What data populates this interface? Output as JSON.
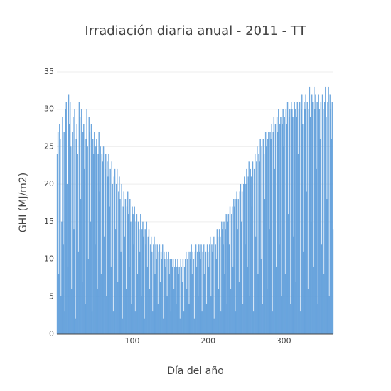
{
  "chart_data": {
    "type": "bar",
    "title": "Irradiación diaria anual - 2011 - TT",
    "xlabel": "Día del año",
    "ylabel": "GHI (MJ/m2)",
    "color": "#5b9bd9",
    "grid": true,
    "xlim": [
      0.5,
      365.5
    ],
    "xticks": [
      100,
      200,
      300
    ],
    "ylim": [
      0,
      35
    ],
    "yticks": [
      0,
      5,
      10,
      15,
      20,
      25,
      30,
      35
    ],
    "x": [
      1,
      2,
      3,
      4,
      5,
      6,
      7,
      8,
      9,
      10,
      11,
      12,
      13,
      14,
      15,
      16,
      17,
      18,
      19,
      20,
      21,
      22,
      23,
      24,
      25,
      26,
      27,
      28,
      29,
      30,
      31,
      32,
      33,
      34,
      35,
      36,
      37,
      38,
      39,
      40,
      41,
      42,
      43,
      44,
      45,
      46,
      47,
      48,
      49,
      50,
      51,
      52,
      53,
      54,
      55,
      56,
      57,
      58,
      59,
      60,
      61,
      62,
      63,
      64,
      65,
      66,
      67,
      68,
      69,
      70,
      71,
      72,
      73,
      74,
      75,
      76,
      77,
      78,
      79,
      80,
      81,
      82,
      83,
      84,
      85,
      86,
      87,
      88,
      89,
      90,
      91,
      92,
      93,
      94,
      95,
      96,
      97,
      98,
      99,
      100,
      101,
      102,
      103,
      104,
      105,
      106,
      107,
      108,
      109,
      110,
      111,
      112,
      113,
      114,
      115,
      116,
      117,
      118,
      119,
      120,
      121,
      122,
      123,
      124,
      125,
      126,
      127,
      128,
      129,
      130,
      131,
      132,
      133,
      134,
      135,
      136,
      137,
      138,
      139,
      140,
      141,
      142,
      143,
      144,
      145,
      146,
      147,
      148,
      149,
      150,
      151,
      152,
      153,
      154,
      155,
      156,
      157,
      158,
      159,
      160,
      161,
      162,
      163,
      164,
      165,
      166,
      167,
      168,
      169,
      170,
      171,
      172,
      173,
      174,
      175,
      176,
      177,
      178,
      179,
      180,
      181,
      182,
      183,
      184,
      185,
      186,
      187,
      188,
      189,
      190,
      191,
      192,
      193,
      194,
      195,
      196,
      197,
      198,
      199,
      200,
      201,
      202,
      203,
      204,
      205,
      206,
      207,
      208,
      209,
      210,
      211,
      212,
      213,
      214,
      215,
      216,
      217,
      218,
      219,
      220,
      221,
      222,
      223,
      224,
      225,
      226,
      227,
      228,
      229,
      230,
      231,
      232,
      233,
      234,
      235,
      236,
      237,
      238,
      239,
      240,
      241,
      242,
      243,
      244,
      245,
      246,
      247,
      248,
      249,
      250,
      251,
      252,
      253,
      254,
      255,
      256,
      257,
      258,
      259,
      260,
      261,
      262,
      263,
      264,
      265,
      266,
      267,
      268,
      269,
      270,
      271,
      272,
      273,
      274,
      275,
      276,
      277,
      278,
      279,
      280,
      281,
      282,
      283,
      284,
      285,
      286,
      287,
      288,
      289,
      290,
      291,
      292,
      293,
      294,
      295,
      296,
      297,
      298,
      299,
      300,
      301,
      302,
      303,
      304,
      305,
      306,
      307,
      308,
      309,
      310,
      311,
      312,
      313,
      314,
      315,
      316,
      317,
      318,
      319,
      320,
      321,
      322,
      323,
      324,
      325,
      326,
      327,
      328,
      329,
      330,
      331,
      332,
      333,
      334,
      335,
      336,
      337,
      338,
      339,
      340,
      341,
      342,
      343,
      344,
      345,
      346,
      347,
      348,
      349,
      350,
      351,
      352,
      353,
      354,
      355,
      356,
      357,
      358,
      359,
      360,
      361,
      362,
      363,
      364,
      365
    ],
    "values": [
      24,
      27,
      8,
      28,
      26,
      5,
      15,
      29,
      12,
      27,
      3,
      30,
      31,
      20,
      9,
      32,
      28,
      31,
      25,
      6,
      27,
      29,
      14,
      30,
      2,
      26,
      28,
      24,
      11,
      31,
      29,
      18,
      30,
      7,
      27,
      28,
      22,
      4,
      26,
      30,
      25,
      10,
      29,
      27,
      15,
      28,
      3,
      26,
      24,
      27,
      12,
      25,
      26,
      6,
      24,
      27,
      19,
      25,
      8,
      24,
      23,
      25,
      13,
      22,
      24,
      5,
      23,
      21,
      24,
      17,
      22,
      9,
      23,
      20,
      3,
      21,
      22,
      14,
      20,
      22,
      7,
      19,
      21,
      18,
      11,
      20,
      2,
      17,
      19,
      13,
      18,
      6,
      17,
      19,
      16,
      9,
      18,
      15,
      4,
      17,
      16,
      12,
      17,
      3,
      15,
      16,
      8,
      15,
      14,
      11,
      16,
      5,
      14,
      15,
      13,
      2,
      14,
      12,
      15,
      9,
      13,
      14,
      6,
      12,
      13,
      11,
      3,
      12,
      13,
      8,
      12,
      10,
      12,
      4,
      11,
      12,
      7,
      11,
      10,
      12,
      2,
      11,
      10,
      9,
      11,
      5,
      10,
      11,
      8,
      10,
      3,
      10,
      9,
      10,
      6,
      9,
      10,
      4,
      9,
      10,
      8,
      9,
      2,
      10,
      9,
      7,
      10,
      3,
      9,
      10,
      11,
      6,
      10,
      11,
      4,
      11,
      10,
      12,
      8,
      11,
      10,
      2,
      11,
      12,
      9,
      11,
      5,
      12,
      11,
      10,
      12,
      3,
      11,
      12,
      8,
      12,
      11,
      4,
      12,
      11,
      9,
      12,
      13,
      5,
      12,
      11,
      13,
      2,
      13,
      12,
      10,
      14,
      13,
      6,
      14,
      13,
      3,
      15,
      14,
      12,
      15,
      8,
      14,
      16,
      4,
      15,
      16,
      12,
      17,
      6,
      16,
      17,
      9,
      18,
      17,
      3,
      18,
      19,
      14,
      18,
      7,
      19,
      20,
      15,
      19,
      4,
      20,
      21,
      12,
      20,
      22,
      9,
      21,
      23,
      5,
      22,
      21,
      17,
      23,
      3,
      22,
      24,
      13,
      23,
      25,
      8,
      24,
      23,
      26,
      10,
      25,
      4,
      26,
      24,
      18,
      27,
      25,
      6,
      26,
      27,
      14,
      27,
      26,
      28,
      3,
      27,
      29,
      22,
      28,
      9,
      29,
      27,
      30,
      12,
      28,
      29,
      5,
      28,
      30,
      25,
      29,
      8,
      30,
      28,
      31,
      16,
      29,
      30,
      4,
      31,
      30,
      29,
      13,
      31,
      30,
      7,
      29,
      31,
      24,
      30,
      31,
      3,
      30,
      32,
      28,
      11,
      31,
      30,
      32,
      19,
      31,
      6,
      30,
      33,
      29,
      15,
      32,
      31,
      9,
      33,
      30,
      32,
      22,
      31,
      4,
      32,
      30,
      26,
      31,
      12,
      32,
      30,
      8,
      31,
      33,
      29,
      18,
      31,
      33,
      5,
      32,
      30,
      26,
      31,
      14
    ]
  }
}
